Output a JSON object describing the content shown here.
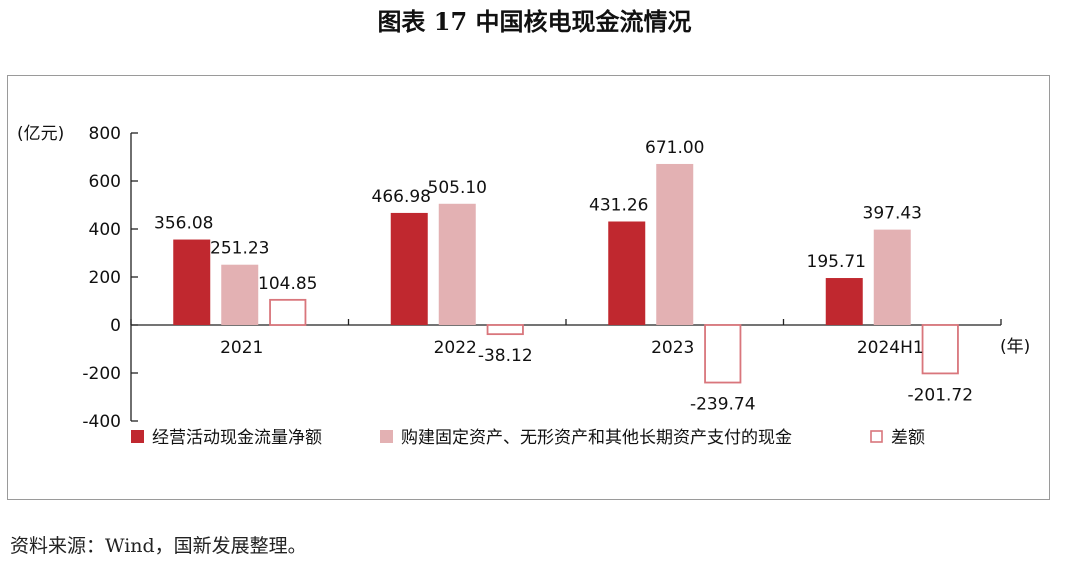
{
  "title": "图表 17  中国核电现金流情况",
  "source": "资料来源：Wind，国新发展整理。",
  "chart_data": {
    "type": "bar",
    "ylabel": "(亿元)",
    "xlabel": "(年)",
    "ylim": [
      -400,
      800
    ],
    "yticks": [
      "800",
      "600",
      "400",
      "200",
      "0",
      "-200",
      "-400"
    ],
    "categories": [
      "2021",
      "2022",
      "2023",
      "2024H1"
    ],
    "series": [
      {
        "name": "经营活动现金流量净额",
        "values": [
          356.08,
          466.98,
          431.26,
          195.71
        ],
        "labels": [
          "356.08",
          "466.98",
          "431.26",
          "195.71"
        ],
        "color": "#c0282f",
        "style": "filled"
      },
      {
        "name": "购建固定资产、无形资产和其他长期资产支付的现金",
        "values": [
          251.23,
          505.1,
          671.0,
          397.43
        ],
        "labels": [
          "251.23",
          "505.10",
          "671.00",
          "397.43"
        ],
        "color": "#e3b1b3",
        "style": "filled"
      },
      {
        "name": "差额",
        "values": [
          104.85,
          -38.12,
          -239.74,
          -201.72
        ],
        "labels": [
          "104.85",
          "-38.12",
          "-239.74",
          "-201.72"
        ],
        "color": "#d9767c",
        "style": "outline"
      }
    ],
    "legend": "bottom",
    "grid": false
  }
}
